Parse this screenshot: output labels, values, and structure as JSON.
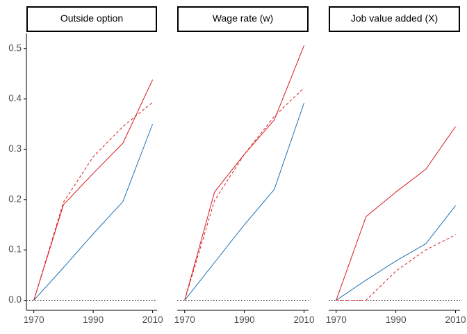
{
  "chart_data": {
    "type": "line",
    "x_ticks": [
      1970,
      1990,
      2010
    ],
    "ylim": [
      -0.02,
      0.53
    ],
    "y_ticks": [
      0.0,
      0.1,
      0.2,
      0.3,
      0.4,
      0.5
    ],
    "y_tick_labels": [
      "0.0",
      "0.1",
      "0.2",
      "0.3",
      "0.4",
      "0.5"
    ],
    "grid": false,
    "legend": "none",
    "reference_line": {
      "y": 0,
      "style": "dotted",
      "color": "#000000"
    },
    "panels": [
      {
        "title": "Outside option",
        "series": [
          {
            "color": "#1f6fb4",
            "style": "solid",
            "x": [
              1970,
              1980,
              1990,
              2000,
              2010
            ],
            "y": [
              0.0,
              0.065,
              0.132,
              0.196,
              0.35
            ]
          },
          {
            "color": "#d7191c",
            "style": "solid",
            "x": [
              1970,
              1980,
              1990,
              2000,
              2010
            ],
            "y": [
              0.0,
              0.19,
              0.252,
              0.312,
              0.438
            ]
          },
          {
            "color": "#d7191c",
            "style": "dashed",
            "x": [
              1970,
              1980,
              1990,
              2000,
              2010
            ],
            "y": [
              0.0,
              0.195,
              0.285,
              0.345,
              0.393
            ]
          }
        ]
      },
      {
        "title": "Wage rate (w)",
        "series": [
          {
            "color": "#1f6fb4",
            "style": "solid",
            "x": [
              1970,
              1980,
              1990,
              2000,
              2010
            ],
            "y": [
              0.0,
              0.075,
              0.15,
              0.22,
              0.392
            ]
          },
          {
            "color": "#d7191c",
            "style": "solid",
            "x": [
              1970,
              1980,
              1990,
              2000,
              2010
            ],
            "y": [
              0.0,
              0.215,
              0.29,
              0.358,
              0.506
            ]
          },
          {
            "color": "#d7191c",
            "style": "dashed",
            "x": [
              1970,
              1980,
              1990,
              2000,
              2010
            ],
            "y": [
              0.0,
              0.198,
              0.29,
              0.365,
              0.422
            ]
          }
        ]
      },
      {
        "title": "Job value added (X)",
        "series": [
          {
            "color": "#1f6fb4",
            "style": "solid",
            "x": [
              1970,
              1980,
              1990,
              2000,
              2010
            ],
            "y": [
              0.0,
              0.04,
              0.078,
              0.112,
              0.188
            ]
          },
          {
            "color": "#d7191c",
            "style": "solid",
            "x": [
              1970,
              1980,
              1990,
              2000,
              2010
            ],
            "y": [
              0.0,
              0.166,
              0.215,
              0.26,
              0.345
            ]
          },
          {
            "color": "#d7191c",
            "style": "dashed",
            "x": [
              1970,
              1980,
              1990,
              2000,
              2010
            ],
            "y": [
              0.0,
              0.0,
              0.058,
              0.1,
              0.13
            ]
          }
        ]
      }
    ]
  }
}
